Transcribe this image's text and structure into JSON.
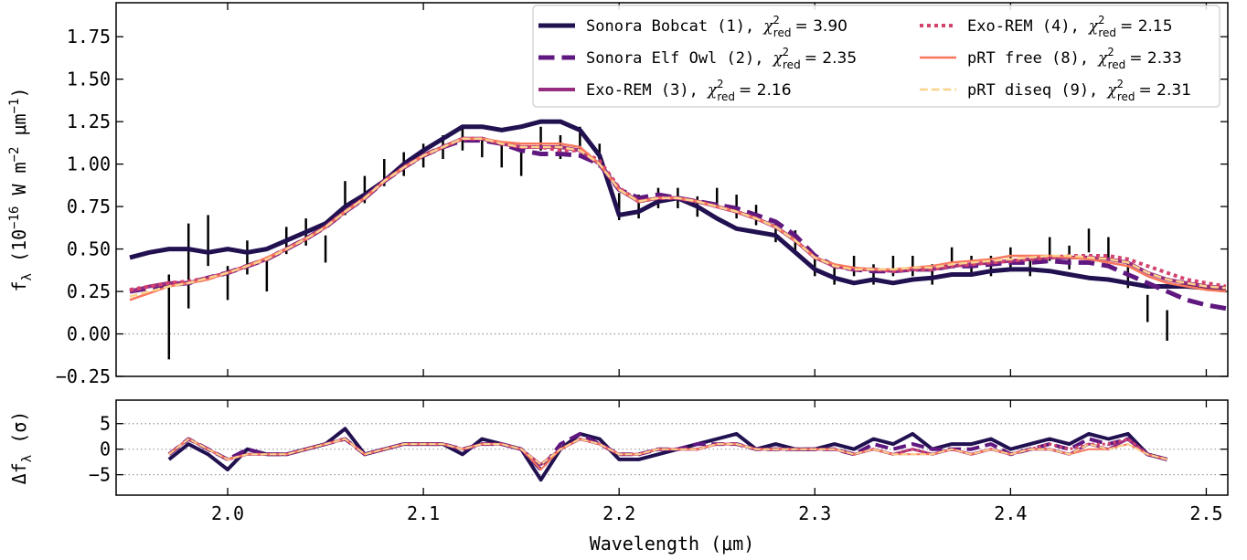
{
  "chart_data": [
    {
      "type": "line",
      "ylabel": [
        {
          "t": "f"
        },
        {
          "t": "λ",
          "sub": true
        },
        {
          "t": " (10"
        },
        {
          "t": "−16",
          "sup": true
        },
        {
          "t": " W m"
        },
        {
          "t": "−2",
          "sup": true
        },
        {
          "t": " μm"
        },
        {
          "t": "−1",
          "sup": true
        },
        {
          "t": ")"
        }
      ],
      "xlim": [
        1.943,
        2.511
      ],
      "ylim": [
        -0.25,
        1.95
      ],
      "yticks": [
        {
          "value": -0.25,
          "label": "−0.25"
        },
        {
          "value": 0,
          "label": "0.00"
        },
        0.25,
        {
          "value": 0.5,
          "label": "0.50"
        },
        0.75,
        {
          "value": 1,
          "label": "1.00"
        },
        1.25,
        {
          "value": 1.5,
          "label": "1.50"
        },
        1.75
      ],
      "hlines": [
        0
      ],
      "legend": "upper right",
      "legend_symbol": {
        "base": "χ",
        "sup": "2",
        "sub": "red"
      },
      "x": [
        1.95,
        1.96,
        1.97,
        1.98,
        1.99,
        2.0,
        2.01,
        2.02,
        2.03,
        2.04,
        2.05,
        2.06,
        2.07,
        2.08,
        2.09,
        2.1,
        2.11,
        2.12,
        2.13,
        2.14,
        2.15,
        2.16,
        2.17,
        2.18,
        2.19,
        2.2,
        2.21,
        2.22,
        2.23,
        2.24,
        2.25,
        2.26,
        2.27,
        2.28,
        2.29,
        2.3,
        2.31,
        2.32,
        2.33,
        2.34,
        2.35,
        2.36,
        2.37,
        2.38,
        2.39,
        2.4,
        2.41,
        2.42,
        2.43,
        2.44,
        2.45,
        2.46,
        2.47,
        2.48,
        2.49,
        2.5,
        2.51
      ],
      "data": {
        "color": "#000000",
        "x": [
          1.97,
          1.98,
          1.99,
          2.0,
          2.01,
          2.02,
          2.03,
          2.04,
          2.05,
          2.06,
          2.07,
          2.08,
          2.09,
          2.1,
          2.11,
          2.12,
          2.13,
          2.14,
          2.15,
          2.16,
          2.17,
          2.18,
          2.19,
          2.2,
          2.21,
          2.22,
          2.23,
          2.24,
          2.25,
          2.26,
          2.27,
          2.28,
          2.29,
          2.3,
          2.31,
          2.32,
          2.33,
          2.34,
          2.35,
          2.36,
          2.37,
          2.38,
          2.39,
          2.4,
          2.41,
          2.42,
          2.43,
          2.44,
          2.45,
          2.46,
          2.47,
          2.48
        ],
        "values": [
          0.1,
          0.4,
          0.55,
          0.3,
          0.45,
          0.35,
          0.55,
          0.6,
          0.5,
          0.8,
          0.85,
          0.95,
          1.0,
          1.05,
          1.1,
          1.15,
          1.1,
          1.05,
          1.0,
          1.15,
          1.1,
          1.15,
          1.05,
          0.75,
          0.75,
          0.8,
          0.8,
          0.75,
          0.8,
          0.75,
          0.7,
          0.6,
          0.55,
          0.4,
          0.35,
          0.4,
          0.35,
          0.4,
          0.4,
          0.35,
          0.45,
          0.4,
          0.4,
          0.45,
          0.4,
          0.5,
          0.45,
          0.55,
          0.5,
          0.35,
          0.15,
          0.05
        ],
        "errors": [
          0.25,
          0.25,
          0.15,
          0.1,
          0.1,
          0.1,
          0.08,
          0.08,
          0.08,
          0.1,
          0.08,
          0.08,
          0.07,
          0.07,
          0.07,
          0.07,
          0.06,
          0.07,
          0.07,
          0.07,
          0.07,
          0.07,
          0.07,
          0.08,
          0.07,
          0.06,
          0.06,
          0.06,
          0.06,
          0.07,
          0.06,
          0.06,
          0.06,
          0.06,
          0.06,
          0.06,
          0.06,
          0.06,
          0.06,
          0.06,
          0.06,
          0.06,
          0.06,
          0.06,
          0.06,
          0.07,
          0.07,
          0.07,
          0.07,
          0.08,
          0.08,
          0.09
        ]
      },
      "series": [
        {
          "name": "Sonora Bobcat (1),",
          "chi2_label": "= 3.90",
          "color": "#221150",
          "dash": "solid",
          "width": 5,
          "values": [
            0.45,
            0.48,
            0.5,
            0.5,
            0.48,
            0.5,
            0.48,
            0.5,
            0.55,
            0.6,
            0.65,
            0.75,
            0.82,
            0.9,
            1.0,
            1.08,
            1.15,
            1.22,
            1.22,
            1.2,
            1.22,
            1.25,
            1.25,
            1.2,
            1.05,
            0.7,
            0.72,
            0.78,
            0.8,
            0.75,
            0.68,
            0.62,
            0.6,
            0.58,
            0.48,
            0.38,
            0.33,
            0.3,
            0.32,
            0.3,
            0.32,
            0.33,
            0.35,
            0.35,
            0.37,
            0.38,
            0.38,
            0.37,
            0.35,
            0.33,
            0.32,
            0.3,
            0.28,
            0.28,
            0.28,
            0.27,
            0.27
          ]
        },
        {
          "name": "Sonora Elf Owl (2),",
          "chi2_label": "= 2.35",
          "color": "#5f187f",
          "dash": "dashed",
          "width": 5,
          "values": [
            0.25,
            0.27,
            0.29,
            0.3,
            0.33,
            0.36,
            0.4,
            0.44,
            0.5,
            0.56,
            0.63,
            0.72,
            0.8,
            0.9,
            0.98,
            1.05,
            1.1,
            1.14,
            1.14,
            1.12,
            1.08,
            1.06,
            1.06,
            1.05,
            1.0,
            0.85,
            0.8,
            0.82,
            0.8,
            0.78,
            0.76,
            0.74,
            0.7,
            0.66,
            0.58,
            0.46,
            0.4,
            0.38,
            0.37,
            0.37,
            0.38,
            0.38,
            0.4,
            0.4,
            0.41,
            0.42,
            0.42,
            0.43,
            0.42,
            0.42,
            0.4,
            0.35,
            0.3,
            0.25,
            0.2,
            0.17,
            0.15
          ]
        },
        {
          "name": "Exo-REM (3),",
          "chi2_label": "= 2.16",
          "color": "#982d80",
          "dash": "solid",
          "width": 4,
          "values": [
            0.25,
            0.28,
            0.3,
            0.3,
            0.33,
            0.36,
            0.4,
            0.44,
            0.5,
            0.56,
            0.63,
            0.72,
            0.8,
            0.9,
            0.98,
            1.05,
            1.1,
            1.15,
            1.15,
            1.12,
            1.1,
            1.1,
            1.1,
            1.08,
            1.0,
            0.85,
            0.78,
            0.8,
            0.8,
            0.78,
            0.75,
            0.72,
            0.68,
            0.63,
            0.55,
            0.45,
            0.4,
            0.38,
            0.38,
            0.37,
            0.38,
            0.38,
            0.4,
            0.41,
            0.42,
            0.43,
            0.44,
            0.45,
            0.45,
            0.45,
            0.44,
            0.42,
            0.36,
            0.32,
            0.3,
            0.28,
            0.27
          ]
        },
        {
          "name": "Exo-REM (4),",
          "chi2_label": "= 2.15",
          "color": "#d3436e",
          "dash": "dotted",
          "width": 4,
          "values": [
            0.26,
            0.28,
            0.3,
            0.31,
            0.33,
            0.36,
            0.4,
            0.44,
            0.5,
            0.56,
            0.63,
            0.72,
            0.8,
            0.9,
            0.98,
            1.05,
            1.1,
            1.15,
            1.15,
            1.12,
            1.1,
            1.1,
            1.08,
            1.08,
            1.02,
            0.86,
            0.78,
            0.8,
            0.8,
            0.78,
            0.75,
            0.72,
            0.68,
            0.63,
            0.55,
            0.45,
            0.4,
            0.38,
            0.38,
            0.37,
            0.38,
            0.38,
            0.4,
            0.41,
            0.42,
            0.43,
            0.44,
            0.45,
            0.46,
            0.46,
            0.46,
            0.44,
            0.4,
            0.36,
            0.32,
            0.3,
            0.28
          ]
        },
        {
          "name": "pRT free (8),",
          "chi2_label": "= 2.33",
          "color": "#f8765c",
          "dash": "solid",
          "width": 2.5,
          "values": [
            0.2,
            0.24,
            0.28,
            0.3,
            0.32,
            0.36,
            0.4,
            0.45,
            0.5,
            0.56,
            0.63,
            0.72,
            0.8,
            0.9,
            0.98,
            1.05,
            1.1,
            1.15,
            1.15,
            1.13,
            1.12,
            1.12,
            1.12,
            1.1,
            1.0,
            0.85,
            0.78,
            0.8,
            0.8,
            0.78,
            0.75,
            0.72,
            0.68,
            0.63,
            0.55,
            0.45,
            0.41,
            0.39,
            0.38,
            0.38,
            0.39,
            0.4,
            0.42,
            0.43,
            0.44,
            0.46,
            0.46,
            0.46,
            0.45,
            0.44,
            0.42,
            0.4,
            0.34,
            0.3,
            0.28,
            0.26,
            0.25
          ]
        },
        {
          "name": "pRT diseq (9),",
          "chi2_label": "= 2.31",
          "color": "#fcd38c",
          "dash": "dashed",
          "width": 2.5,
          "values": [
            0.22,
            0.25,
            0.28,
            0.3,
            0.33,
            0.36,
            0.4,
            0.44,
            0.5,
            0.56,
            0.63,
            0.72,
            0.8,
            0.9,
            0.98,
            1.05,
            1.1,
            1.15,
            1.15,
            1.12,
            1.1,
            1.1,
            1.1,
            1.08,
            1.0,
            0.85,
            0.78,
            0.8,
            0.8,
            0.78,
            0.75,
            0.72,
            0.68,
            0.63,
            0.55,
            0.45,
            0.4,
            0.38,
            0.38,
            0.38,
            0.39,
            0.39,
            0.41,
            0.42,
            0.43,
            0.44,
            0.45,
            0.46,
            0.46,
            0.45,
            0.44,
            0.42,
            0.36,
            0.32,
            0.3,
            0.28,
            0.27
          ]
        }
      ]
    },
    {
      "type": "line",
      "xlabel": "Wavelength (μm)",
      "ylabel": [
        {
          "t": "Δf"
        },
        {
          "t": "λ",
          "sub": true
        },
        {
          "t": " (σ)"
        }
      ],
      "xlim": [
        1.943,
        2.511
      ],
      "ylim": [
        -9,
        9.6
      ],
      "xticks": [
        {
          "value": 2.0,
          "label": "2.0"
        },
        2.1,
        2.2,
        2.3,
        2.4,
        2.5
      ],
      "yticks": [
        {
          "value": -5,
          "label": "−5"
        },
        0,
        5
      ],
      "hlines": [
        -5,
        0,
        5
      ],
      "x": [
        1.97,
        1.98,
        1.99,
        2.0,
        2.01,
        2.02,
        2.03,
        2.04,
        2.05,
        2.06,
        2.07,
        2.08,
        2.09,
        2.1,
        2.11,
        2.12,
        2.13,
        2.14,
        2.15,
        2.16,
        2.17,
        2.18,
        2.19,
        2.2,
        2.21,
        2.22,
        2.23,
        2.24,
        2.25,
        2.26,
        2.27,
        2.28,
        2.29,
        2.3,
        2.31,
        2.32,
        2.33,
        2.34,
        2.35,
        2.36,
        2.37,
        2.38,
        2.39,
        2.4,
        2.41,
        2.42,
        2.43,
        2.44,
        2.45,
        2.46,
        2.47,
        2.48
      ],
      "series": [
        {
          "color": "#221150",
          "dash": "solid",
          "width": 4,
          "values": [
            -2,
            1,
            -1,
            -4,
            0,
            -1,
            -1,
            0,
            1,
            4,
            -1,
            0,
            1,
            1,
            1,
            -1,
            2,
            1,
            0,
            -6,
            0,
            3,
            2,
            -2,
            -2,
            -1,
            0,
            1,
            2,
            3,
            0,
            1,
            0,
            0,
            1,
            0,
            2,
            1,
            3,
            0,
            1,
            1,
            2,
            0,
            1,
            2,
            1,
            3,
            2,
            3,
            -1,
            -2
          ]
        },
        {
          "color": "#5f187f",
          "dash": "dashed",
          "width": 4,
          "values": [
            -1,
            2,
            0,
            -2,
            0,
            -1,
            -1,
            0,
            1,
            2,
            -1,
            0,
            1,
            1,
            1,
            0,
            1,
            1,
            0,
            -4,
            1,
            3,
            1,
            -1,
            -1,
            0,
            0,
            1,
            1,
            1,
            0,
            0,
            0,
            0,
            0,
            -1,
            1,
            0,
            1,
            0,
            0,
            0,
            1,
            -1,
            0,
            1,
            0,
            2,
            1,
            2,
            -1,
            -2
          ]
        },
        {
          "color": "#982d80",
          "dash": "solid",
          "width": 3,
          "values": [
            -1,
            2,
            0,
            -2,
            -1,
            -1,
            -1,
            0,
            1,
            2,
            -1,
            0,
            1,
            1,
            1,
            0,
            1,
            1,
            0,
            -3,
            0,
            2,
            1,
            -1,
            -1,
            0,
            0,
            0,
            1,
            1,
            0,
            0,
            0,
            0,
            0,
            -1,
            0,
            -1,
            0,
            -1,
            0,
            -1,
            0,
            -1,
            0,
            0,
            -1,
            1,
            0,
            2,
            -1,
            -2
          ]
        },
        {
          "color": "#d3436e",
          "dash": "dotted",
          "width": 3,
          "values": [
            -1,
            2,
            0,
            -2,
            -1,
            -1,
            -1,
            0,
            1,
            2,
            -1,
            0,
            1,
            1,
            1,
            0,
            1,
            1,
            0,
            -3,
            0,
            2,
            1,
            -1,
            -1,
            0,
            0,
            0,
            1,
            1,
            0,
            0,
            0,
            0,
            0,
            -1,
            0,
            -1,
            0,
            -1,
            0,
            -1,
            0,
            -1,
            0,
            1,
            0,
            1,
            1,
            2,
            -1,
            -2
          ]
        },
        {
          "color": "#f8765c",
          "dash": "solid",
          "width": 2,
          "values": [
            -1,
            2,
            0,
            -2,
            -1,
            -1,
            -1,
            0,
            1,
            2,
            -1,
            0,
            1,
            1,
            1,
            0,
            1,
            1,
            0,
            -4,
            0,
            2,
            1,
            -1,
            -1,
            0,
            0,
            0,
            1,
            1,
            0,
            0,
            0,
            0,
            0,
            -1,
            0,
            -1,
            -1,
            -1,
            0,
            -1,
            0,
            -1,
            0,
            0,
            -1,
            0,
            0,
            1,
            -1,
            -2
          ]
        },
        {
          "color": "#fcd38c",
          "dash": "dashed",
          "width": 2,
          "values": [
            -1,
            2,
            0,
            -2,
            -1,
            -1,
            -1,
            0,
            1,
            2,
            -1,
            0,
            1,
            1,
            1,
            0,
            1,
            1,
            0,
            -3,
            0,
            2,
            1,
            -1,
            -1,
            0,
            0,
            0,
            1,
            1,
            0,
            0,
            0,
            0,
            0,
            -1,
            0,
            -1,
            -1,
            -1,
            0,
            -1,
            0,
            -1,
            0,
            0,
            -1,
            1,
            0,
            1,
            -1,
            -2
          ]
        }
      ]
    }
  ]
}
